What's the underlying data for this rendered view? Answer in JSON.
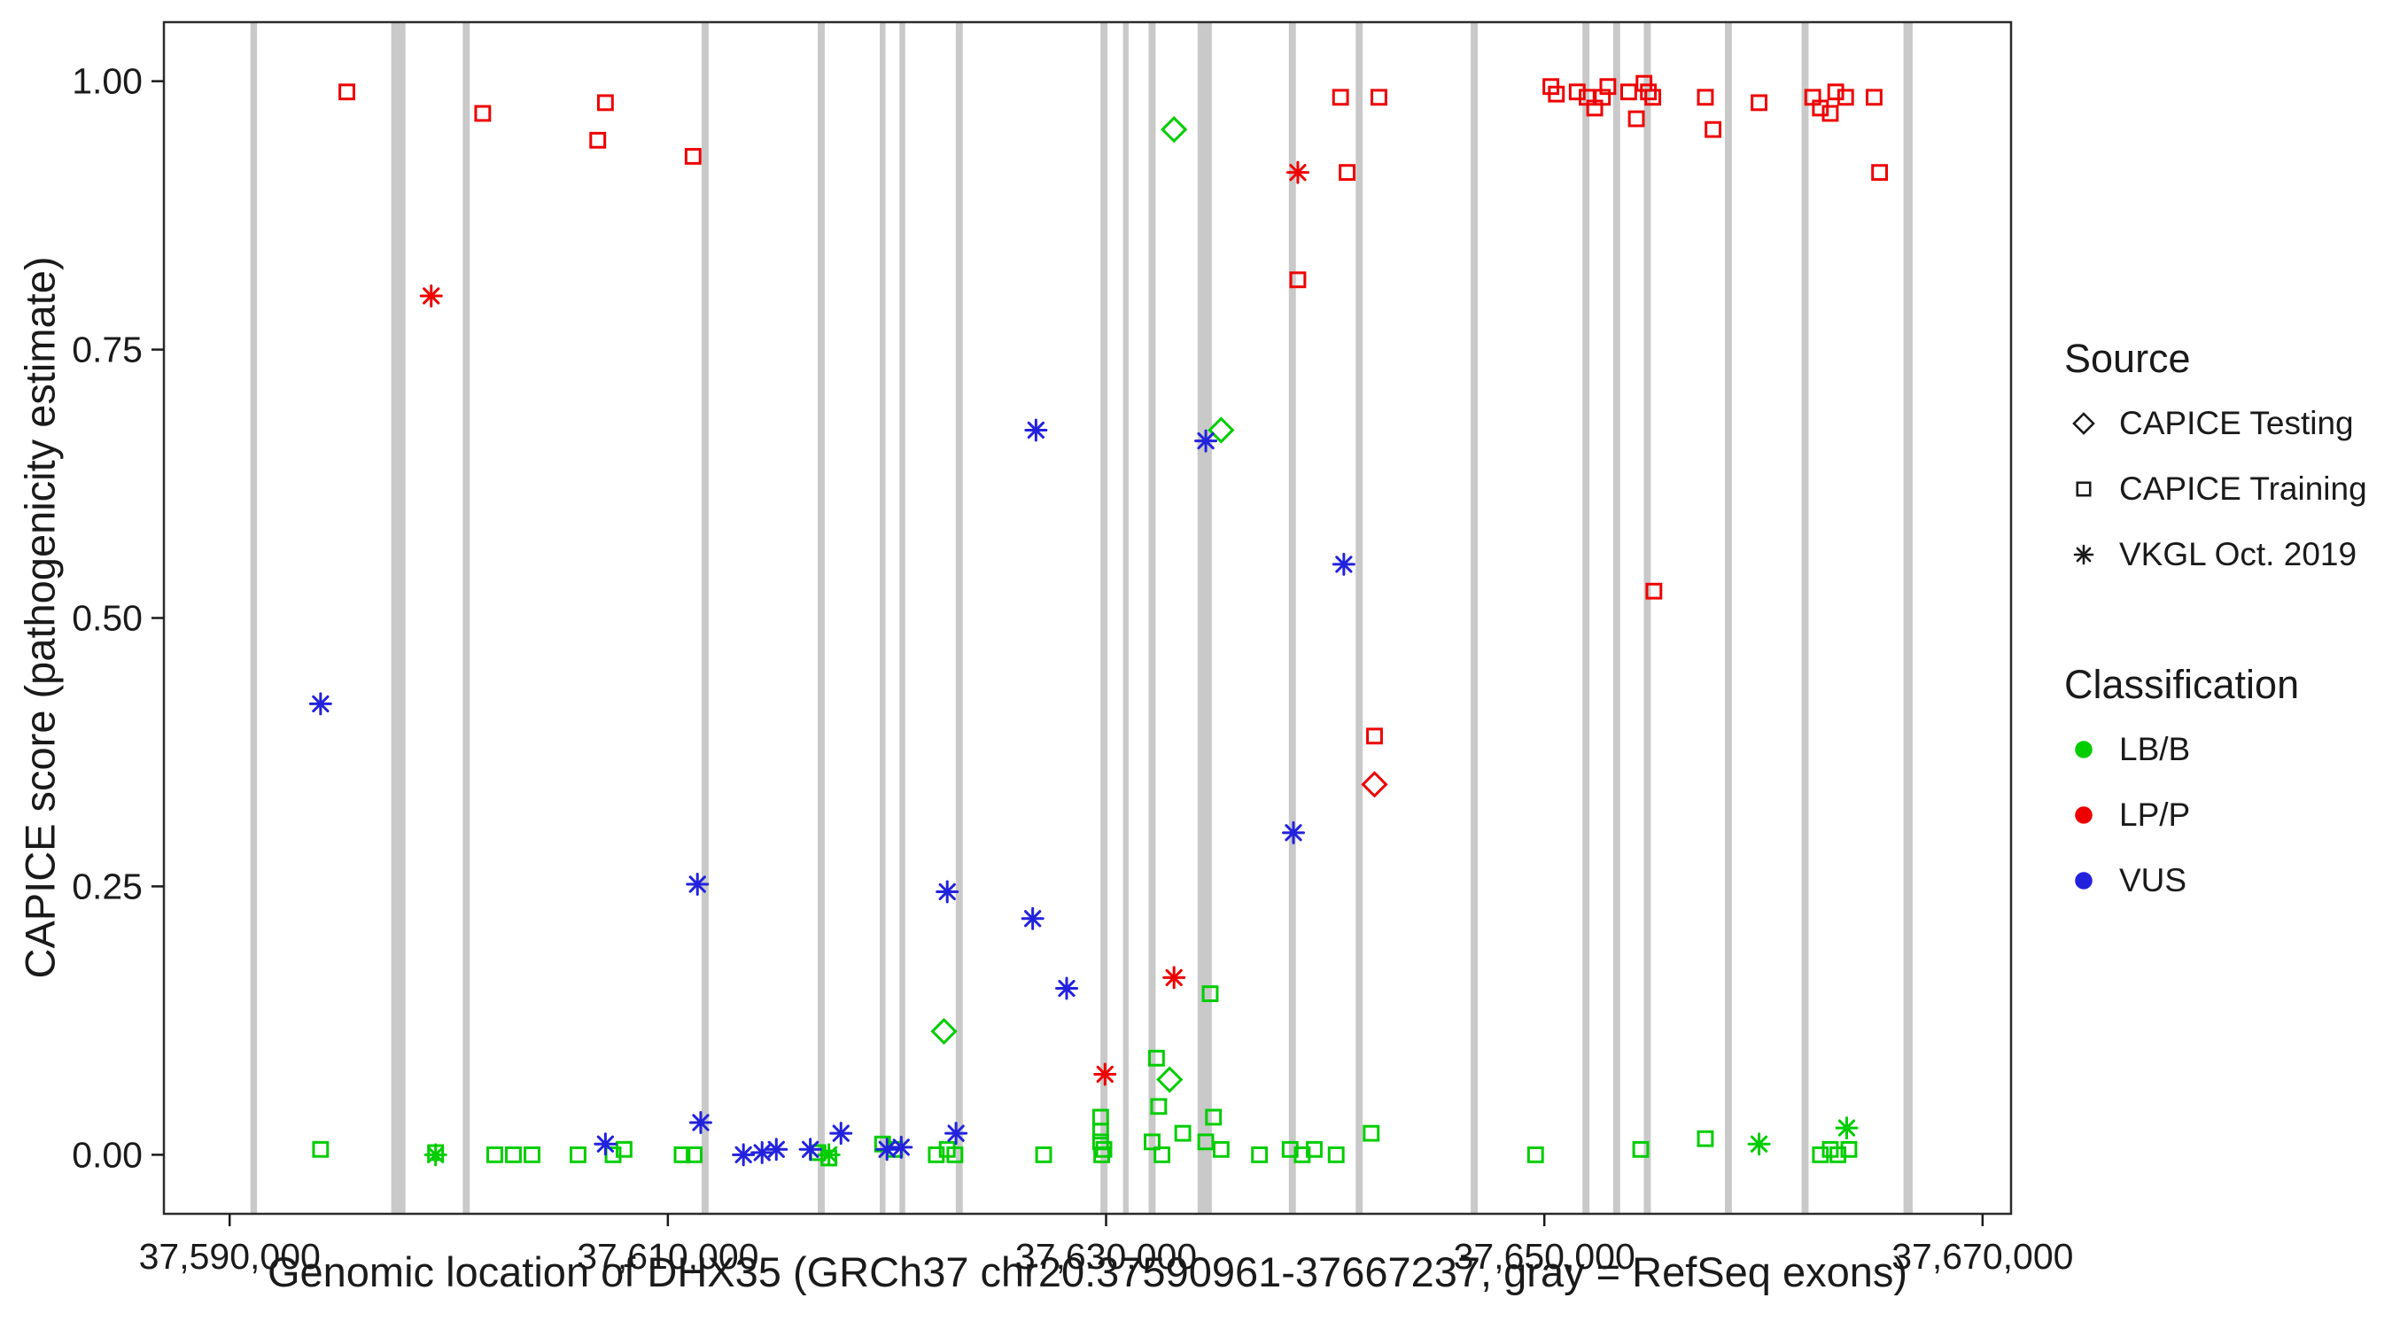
{
  "figure": {
    "background": "#ffffff",
    "panel_border_color": "#2b2b2b",
    "text_color": "#1a1a1a",
    "legend": {
      "source": {
        "title": "Source",
        "items": [
          {
            "label": "CAPICE Testing",
            "shape": "diamond",
            "color": "#1a1a1a",
            "icon": "open-diamond-icon"
          },
          {
            "label": "CAPICE Training",
            "shape": "square",
            "color": "#1a1a1a",
            "icon": "open-square-icon"
          },
          {
            "label": "VKGL Oct. 2019",
            "shape": "asterisk",
            "color": "#1a1a1a",
            "icon": "asterisk-icon"
          }
        ]
      },
      "classification": {
        "title": "Classification",
        "items": [
          {
            "label": "LB/B",
            "shape": "circle",
            "color": "#00cd00",
            "icon": "green-dot-icon"
          },
          {
            "label": "LP/P",
            "shape": "circle",
            "color": "#ee0000",
            "icon": "red-dot-icon"
          },
          {
            "label": "VUS",
            "shape": "circle",
            "color": "#2222dd",
            "icon": "blue-dot-icon"
          }
        ]
      }
    }
  },
  "chart_data": {
    "type": "scatter",
    "title": "",
    "xlabel": "Genomic location of DHX35 (GRCh37 chr20:37590961-37667237, gray = RefSeq exons)",
    "ylabel": "CAPICE score (pathogenicity estimate)",
    "xlim": [
      37587000,
      37671300
    ],
    "ylim": [
      -0.055,
      1.055
    ],
    "grid": false,
    "legend_position": "right",
    "exon_color": "#c9c9c9",
    "x_ticks": [
      {
        "value": 37590000,
        "label": "37,590,000"
      },
      {
        "value": 37610000,
        "label": "37,610,000"
      },
      {
        "value": 37630000,
        "label": "37,630,000"
      },
      {
        "value": 37650000,
        "label": "37,650,000"
      },
      {
        "value": 37670000,
        "label": "37,670,000"
      }
    ],
    "y_ticks": [
      {
        "value": 0.0,
        "label": "0.00"
      },
      {
        "value": 0.25,
        "label": "0.25"
      },
      {
        "value": 0.5,
        "label": "0.50"
      },
      {
        "value": 0.75,
        "label": "0.75"
      },
      {
        "value": 1.0,
        "label": "1.00"
      }
    ],
    "exons": [
      [
        37591100,
        300
      ],
      [
        37597700,
        650
      ],
      [
        37600800,
        320
      ],
      [
        37611700,
        320
      ],
      [
        37617000,
        320
      ],
      [
        37619800,
        260
      ],
      [
        37620700,
        260
      ],
      [
        37623300,
        320
      ],
      [
        37629900,
        320
      ],
      [
        37630900,
        260
      ],
      [
        37632100,
        320
      ],
      [
        37634500,
        650
      ],
      [
        37638500,
        320
      ],
      [
        37641550,
        320
      ],
      [
        37646800,
        320
      ],
      [
        37651900,
        320
      ],
      [
        37653300,
        320
      ],
      [
        37654700,
        320
      ],
      [
        37658400,
        320
      ],
      [
        37661900,
        320
      ],
      [
        37666600,
        420
      ]
    ],
    "series": [
      {
        "name": "LP/P - CAPICE Training",
        "classification": "LP/P",
        "source": "CAPICE Training",
        "shape": "square",
        "color": "#ee0000",
        "points": [
          [
            37595350,
            0.99
          ],
          [
            37601550,
            0.97
          ],
          [
            37606800,
            0.945
          ],
          [
            37607150,
            0.98
          ],
          [
            37611150,
            0.93
          ],
          [
            37638750,
            0.815
          ],
          [
            37640700,
            0.985
          ],
          [
            37641000,
            0.915
          ],
          [
            37642450,
            0.985
          ],
          [
            37642250,
            0.39
          ],
          [
            37650300,
            0.995
          ],
          [
            37650550,
            0.988
          ],
          [
            37651500,
            0.99
          ],
          [
            37651950,
            0.985
          ],
          [
            37652300,
            0.975
          ],
          [
            37652650,
            0.985
          ],
          [
            37652900,
            0.995
          ],
          [
            37653850,
            0.99
          ],
          [
            37654200,
            0.965
          ],
          [
            37654550,
            0.998
          ],
          [
            37654750,
            0.99
          ],
          [
            37654950,
            0.985
          ],
          [
            37655000,
            0.525
          ],
          [
            37657350,
            0.985
          ],
          [
            37657700,
            0.955
          ],
          [
            37659800,
            0.98
          ],
          [
            37662250,
            0.985
          ],
          [
            37662600,
            0.975
          ],
          [
            37663050,
            0.97
          ],
          [
            37663300,
            0.99
          ],
          [
            37663750,
            0.985
          ],
          [
            37665050,
            0.985
          ],
          [
            37665300,
            0.915
          ]
        ]
      },
      {
        "name": "LP/P - VKGL Oct. 2019",
        "classification": "LP/P",
        "source": "VKGL Oct. 2019",
        "shape": "asterisk",
        "color": "#ee0000",
        "points": [
          [
            37599200,
            0.8
          ],
          [
            37629950,
            0.075
          ],
          [
            37633100,
            0.165
          ],
          [
            37638750,
            0.915
          ]
        ]
      },
      {
        "name": "LP/P - CAPICE Testing",
        "classification": "LP/P",
        "source": "CAPICE Testing",
        "shape": "diamond",
        "color": "#ee0000",
        "points": [
          [
            37642250,
            0.345
          ]
        ]
      },
      {
        "name": "LB/B - CAPICE Testing",
        "classification": "LB/B",
        "source": "CAPICE Testing",
        "shape": "diamond",
        "color": "#00cd00",
        "points": [
          [
            37622600,
            0.115
          ],
          [
            37632900,
            0.07
          ],
          [
            37633100,
            0.955
          ],
          [
            37635250,
            0.675
          ]
        ]
      },
      {
        "name": "LB/B - CAPICE Training",
        "classification": "LB/B",
        "source": "CAPICE Training",
        "shape": "square",
        "color": "#00cd00",
        "points": [
          [
            37594150,
            0.005
          ],
          [
            37599400,
            0.002
          ],
          [
            37602100,
            0.0
          ],
          [
            37602950,
            0.0
          ],
          [
            37603800,
            0.0
          ],
          [
            37605900,
            0.0
          ],
          [
            37607500,
            0.0
          ],
          [
            37608000,
            0.005
          ],
          [
            37610650,
            0.0
          ],
          [
            37611200,
            0.0
          ],
          [
            37616850,
            0.002
          ],
          [
            37617350,
            -0.003
          ],
          [
            37619800,
            0.01
          ],
          [
            37620350,
            0.005
          ],
          [
            37622250,
            0.0
          ],
          [
            37622750,
            0.005
          ],
          [
            37623100,
            0.0
          ],
          [
            37627150,
            0.0
          ],
          [
            37629750,
            0.035
          ],
          [
            37629750,
            0.022
          ],
          [
            37629750,
            0.012
          ],
          [
            37629900,
            0.005
          ],
          [
            37629800,
            0.0
          ],
          [
            37632300,
            0.09
          ],
          [
            37632400,
            0.045
          ],
          [
            37632100,
            0.012
          ],
          [
            37632550,
            0.0
          ],
          [
            37633500,
            0.02
          ],
          [
            37634750,
            0.15
          ],
          [
            37634900,
            0.035
          ],
          [
            37634550,
            0.012
          ],
          [
            37635250,
            0.005
          ],
          [
            37637000,
            0.0
          ],
          [
            37638400,
            0.005
          ],
          [
            37638950,
            0.0
          ],
          [
            37639500,
            0.005
          ],
          [
            37640500,
            0.0
          ],
          [
            37642100,
            0.02
          ],
          [
            37649600,
            0.0
          ],
          [
            37654400,
            0.005
          ],
          [
            37657350,
            0.015
          ],
          [
            37662600,
            0.0
          ],
          [
            37663050,
            0.005
          ],
          [
            37663400,
            0.0
          ],
          [
            37663900,
            0.005
          ]
        ]
      },
      {
        "name": "LB/B - VKGL Oct. 2019",
        "classification": "LB/B",
        "source": "VKGL Oct. 2019",
        "shape": "asterisk",
        "color": "#00cd00",
        "points": [
          [
            37599400,
            0.0
          ],
          [
            37617350,
            0.0
          ],
          [
            37659800,
            0.01
          ],
          [
            37663800,
            0.025
          ]
        ]
      },
      {
        "name": "VUS - VKGL Oct. 2019",
        "classification": "VUS",
        "source": "VKGL Oct. 2019",
        "shape": "asterisk",
        "color": "#2222dd",
        "points": [
          [
            37594150,
            0.42
          ],
          [
            37607150,
            0.01
          ],
          [
            37611350,
            0.252
          ],
          [
            37611500,
            0.03
          ],
          [
            37613450,
            0.0
          ],
          [
            37614300,
            0.002
          ],
          [
            37614950,
            0.005
          ],
          [
            37616500,
            0.005
          ],
          [
            37617900,
            0.02
          ],
          [
            37620000,
            0.005
          ],
          [
            37620650,
            0.007
          ],
          [
            37622750,
            0.245
          ],
          [
            37623150,
            0.02
          ],
          [
            37626650,
            0.22
          ],
          [
            37626800,
            0.675
          ],
          [
            37628200,
            0.155
          ],
          [
            37634550,
            0.665
          ],
          [
            37638550,
            0.3
          ],
          [
            37640850,
            0.55
          ]
        ]
      }
    ]
  }
}
